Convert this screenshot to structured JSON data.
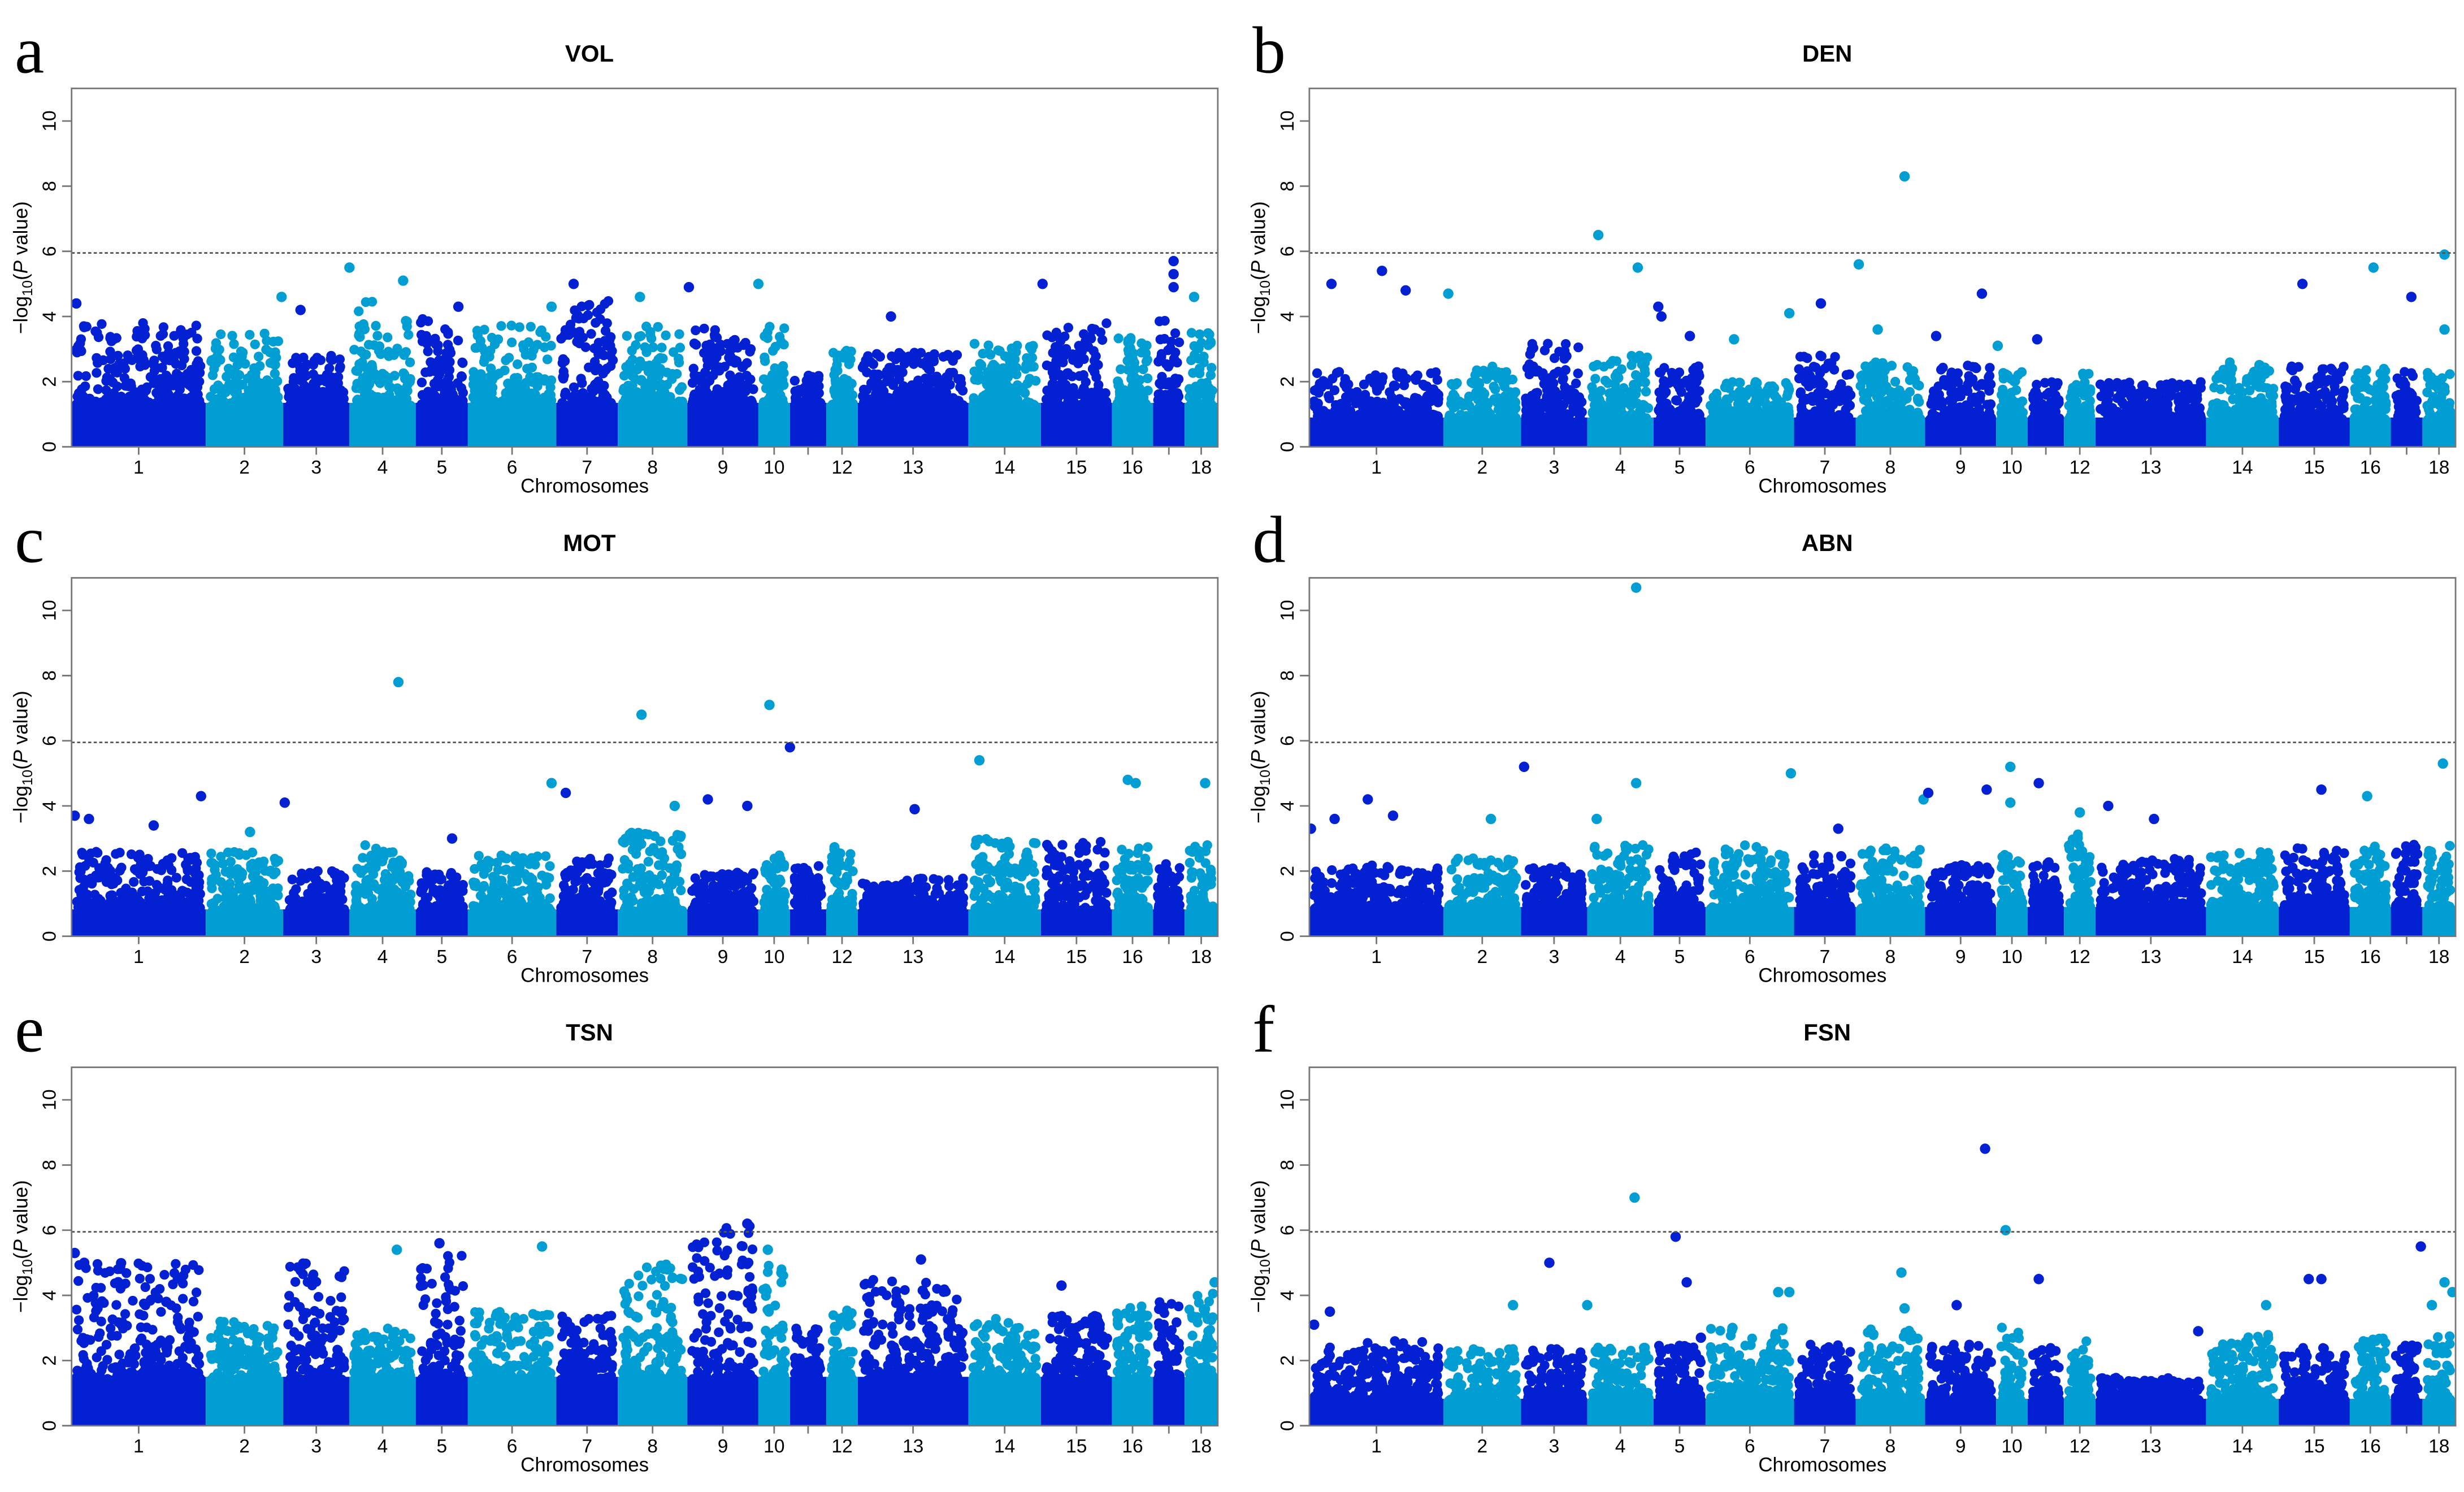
{
  "chart_data": [
    {
      "type": "scatter",
      "letter": "a",
      "title": "VOL",
      "xlabel": "Chromosomes",
      "ylim": [
        0,
        11
      ],
      "threshold": 5.95,
      "floor": 1.8,
      "envelope": [
        3.8,
        3.5,
        2.8,
        4.5,
        4.0,
        3.8,
        4.5,
        3.8,
        3.7,
        3.8,
        2.2,
        3.0,
        2.9,
        3.2,
        3.8,
        3.4,
        4.0,
        3.5
      ],
      "hits": [
        [
          0,
          4.4
        ],
        [
          133,
          4.6
        ],
        [
          145,
          4.2
        ],
        [
          176,
          5.5
        ],
        [
          210,
          5.1
        ],
        [
          245,
          4.3
        ],
        [
          304,
          4.3
        ],
        [
          318,
          5.0
        ],
        [
          360,
          4.6
        ],
        [
          391,
          4.9
        ],
        [
          435,
          5.0
        ],
        [
          519,
          4.0
        ],
        [
          615,
          5.0
        ],
        [
          698,
          5.7
        ],
        [
          698,
          5.3
        ],
        [
          698,
          4.9
        ],
        [
          711,
          4.6
        ]
      ]
    },
    {
      "type": "scatter",
      "letter": "b",
      "title": "DEN",
      "xlabel": "Chromosomes",
      "ylim": [
        0,
        11
      ],
      "threshold": 5.95,
      "floor": 1.2,
      "envelope": [
        2.3,
        2.5,
        3.2,
        2.8,
        2.5,
        2.0,
        2.8,
        2.6,
        2.5,
        2.3,
        2.0,
        2.3,
        2.0,
        2.6,
        2.5,
        2.4,
        2.3,
        2.3
      ],
      "hits": [
        [
          14,
          5.0
        ],
        [
          46,
          5.4
        ],
        [
          61,
          4.8
        ],
        [
          88,
          4.7
        ],
        [
          183,
          6.5
        ],
        [
          208,
          5.5
        ],
        [
          221,
          4.3
        ],
        [
          223,
          4.0
        ],
        [
          241,
          3.4
        ],
        [
          269,
          3.3
        ],
        [
          304,
          4.1
        ],
        [
          324,
          4.4
        ],
        [
          348,
          5.6
        ],
        [
          360,
          3.6
        ],
        [
          377,
          8.3
        ],
        [
          397,
          3.4
        ],
        [
          426,
          4.7
        ],
        [
          436,
          3.1
        ],
        [
          461,
          3.3
        ],
        [
          629,
          5.0
        ],
        [
          674,
          5.5
        ],
        [
          698,
          4.6
        ],
        [
          719,
          5.9
        ],
        [
          719,
          3.6
        ]
      ]
    },
    {
      "type": "scatter",
      "letter": "c",
      "title": "MOT",
      "xlabel": "Chromosomes",
      "ylim": [
        0,
        11
      ],
      "threshold": 5.95,
      "floor": 1.1,
      "envelope": [
        2.6,
        2.6,
        2.0,
        2.8,
        2.0,
        2.5,
        2.4,
        3.2,
        2.0,
        2.5,
        2.3,
        2.8,
        1.8,
        3.0,
        2.9,
        2.8,
        2.3,
        2.8
      ],
      "hits": [
        [
          2,
          3.7
        ],
        [
          11,
          3.6
        ],
        [
          52,
          3.4
        ],
        [
          82,
          4.3
        ],
        [
          113,
          3.2
        ],
        [
          135,
          4.1
        ],
        [
          207,
          7.8
        ],
        [
          241,
          3.0
        ],
        [
          304,
          4.7
        ],
        [
          313,
          4.4
        ],
        [
          361,
          6.8
        ],
        [
          382,
          4.0
        ],
        [
          403,
          4.2
        ],
        [
          428,
          4.0
        ],
        [
          442,
          7.1
        ],
        [
          455,
          5.8
        ],
        [
          534,
          3.9
        ],
        [
          575,
          5.4
        ],
        [
          669,
          4.8
        ],
        [
          674,
          4.7
        ],
        [
          718,
          4.7
        ]
      ]
    },
    {
      "type": "scatter",
      "letter": "d",
      "title": "ABN",
      "xlabel": "Chromosomes",
      "ylim": [
        0,
        11
      ],
      "threshold": 5.95,
      "floor": 1.2,
      "envelope": [
        2.2,
        2.4,
        2.2,
        2.8,
        2.6,
        2.8,
        2.5,
        2.7,
        2.2,
        2.5,
        2.3,
        3.2,
        2.4,
        2.6,
        2.8,
        2.8,
        2.9,
        2.8
      ],
      "hits": [
        [
          1,
          3.3
        ],
        [
          16,
          3.6
        ],
        [
          37,
          4.2
        ],
        [
          53,
          3.7
        ],
        [
          115,
          3.6
        ],
        [
          136,
          5.2
        ],
        [
          182,
          3.6
        ],
        [
          207,
          10.7
        ],
        [
          207,
          4.7
        ],
        [
          305,
          5.0
        ],
        [
          335,
          3.3
        ],
        [
          389,
          4.2
        ],
        [
          392,
          4.4
        ],
        [
          429,
          4.5
        ],
        [
          444,
          5.2
        ],
        [
          444,
          4.1
        ],
        [
          462,
          4.7
        ],
        [
          488,
          3.8
        ],
        [
          506,
          4.0
        ],
        [
          535,
          3.6
        ],
        [
          641,
          4.5
        ],
        [
          670,
          4.3
        ],
        [
          718,
          5.3
        ]
      ]
    },
    {
      "type": "scatter",
      "letter": "e",
      "title": "TSN",
      "xlabel": "Chromosomes",
      "ylim": [
        0,
        11
      ],
      "threshold": 5.95,
      "floor": 2.0,
      "envelope": [
        5.0,
        3.2,
        5.0,
        3.0,
        5.3,
        3.5,
        3.4,
        5.0,
        6.2,
        5.0,
        3.0,
        3.6,
        4.6,
        3.3,
        3.4,
        3.7,
        3.8,
        4.2
      ],
      "hits": [
        [
          2,
          5.3
        ],
        [
          8,
          5.0
        ],
        [
          60,
          3.8
        ],
        [
          206,
          5.4
        ],
        [
          233,
          5.6
        ],
        [
          298,
          5.5
        ],
        [
          428,
          6.2
        ],
        [
          441,
          5.4
        ],
        [
          538,
          5.1
        ],
        [
          627,
          4.3
        ],
        [
          724,
          4.4
        ]
      ]
    },
    {
      "type": "scatter",
      "letter": "f",
      "title": "FSN",
      "xlabel": "Chromosomes",
      "ylim": [
        0,
        11
      ],
      "threshold": 5.95,
      "floor": 1.1,
      "envelope": [
        2.6,
        2.4,
        2.4,
        2.4,
        2.5,
        3.0,
        2.5,
        3.0,
        2.5,
        3.1,
        2.4,
        2.8,
        1.5,
        2.8,
        2.4,
        2.8,
        2.6,
        2.8
      ],
      "hits": [
        [
          3,
          3.1
        ],
        [
          13,
          3.5
        ],
        [
          129,
          3.7
        ],
        [
          152,
          5.0
        ],
        [
          176,
          3.7
        ],
        [
          206,
          7.0
        ],
        [
          232,
          5.8
        ],
        [
          239,
          4.4
        ],
        [
          248,
          2.7
        ],
        [
          268,
          3.0
        ],
        [
          297,
          4.1
        ],
        [
          304,
          4.1
        ],
        [
          375,
          4.7
        ],
        [
          377,
          3.6
        ],
        [
          410,
          3.7
        ],
        [
          428,
          8.5
        ],
        [
          441,
          6.0
        ],
        [
          462,
          4.5
        ],
        [
          563,
          2.9
        ],
        [
          606,
          3.7
        ],
        [
          633,
          4.5
        ],
        [
          641,
          4.5
        ],
        [
          704,
          5.5
        ],
        [
          711,
          3.7
        ],
        [
          719,
          4.4
        ],
        [
          724,
          4.1
        ]
      ]
    }
  ],
  "chromosomes": {
    "labels": [
      "1",
      "2",
      "3",
      "4",
      "5",
      "6",
      "7",
      "8",
      "9",
      "10",
      "",
      "12",
      "13",
      "14",
      "15",
      "16",
      "",
      "18"
    ],
    "lengths": [
      85,
      49,
      42,
      42,
      33,
      56,
      39,
      44,
      45,
      20,
      23,
      20,
      70,
      46,
      45,
      26,
      20,
      21
    ]
  },
  "yticks": [
    "0",
    "2",
    "4",
    "6",
    "8",
    "10"
  ],
  "ylabel": {
    "prefix": "−log",
    "sub": "10",
    "open": "(",
    "italic": "P",
    "rest": " value)"
  },
  "colors": {
    "odd": "#0321d2",
    "even": "#009ed3",
    "threshold": "#555555",
    "axis": "#777777"
  }
}
